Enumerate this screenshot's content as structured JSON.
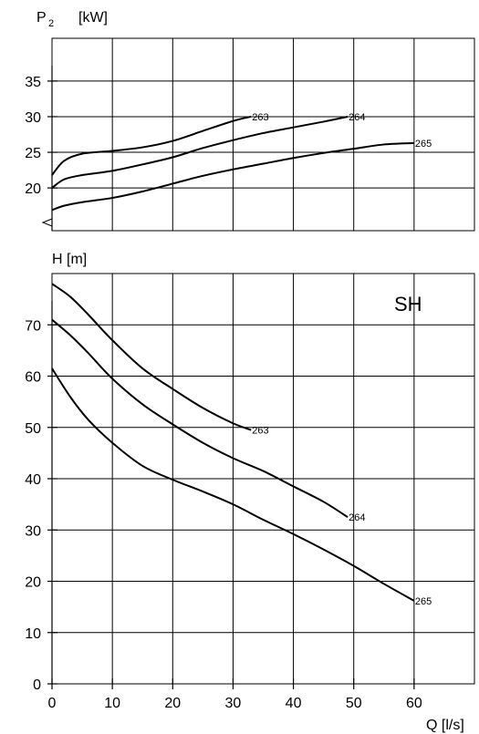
{
  "chart_data": [
    {
      "type": "line",
      "ylabel": "P",
      "ylabel_sub": "2",
      "ylabel_unit": "[kW]",
      "xlim": [
        0,
        70
      ],
      "ylim": [
        14,
        41
      ],
      "x_ticks": [
        0,
        10,
        20,
        30,
        40,
        50,
        60
      ],
      "y_ticks": [
        20,
        25,
        30,
        35
      ],
      "y_tick_labels": [
        "20",
        "25",
        "30",
        "35"
      ],
      "grid": true,
      "series": [
        {
          "name": "263",
          "x": [
            0,
            2,
            5,
            10,
            15,
            20,
            25,
            30,
            33
          ],
          "y": [
            21.8,
            23.8,
            24.8,
            25.2,
            25.7,
            26.6,
            28.0,
            29.4,
            30.0
          ]
        },
        {
          "name": "264",
          "x": [
            0,
            2,
            5,
            10,
            15,
            20,
            25,
            30,
            35,
            40,
            45,
            49
          ],
          "y": [
            20.0,
            21.2,
            21.8,
            22.4,
            23.3,
            24.3,
            25.6,
            26.7,
            27.7,
            28.5,
            29.3,
            30.0
          ]
        },
        {
          "name": "265",
          "x": [
            0,
            2,
            5,
            10,
            15,
            20,
            25,
            30,
            35,
            40,
            45,
            50,
            55,
            60
          ],
          "y": [
            16.9,
            17.5,
            18.0,
            18.6,
            19.5,
            20.6,
            21.7,
            22.6,
            23.4,
            24.2,
            24.9,
            25.5,
            26.1,
            26.3
          ]
        }
      ]
    },
    {
      "type": "line",
      "ylabel": "H [m]",
      "xlabel": "Q [l/s]",
      "annotation": "SH",
      "xlim": [
        0,
        70
      ],
      "ylim": [
        0,
        80
      ],
      "x_ticks": [
        0,
        10,
        20,
        30,
        40,
        50,
        60
      ],
      "x_tick_labels": [
        "0",
        "10",
        "20",
        "30",
        "40",
        "50",
        "60"
      ],
      "y_ticks": [
        0,
        10,
        20,
        30,
        40,
        50,
        60,
        70
      ],
      "y_tick_labels": [
        "0",
        "10",
        "20",
        "30",
        "40",
        "50",
        "60",
        "70"
      ],
      "grid": true,
      "series": [
        {
          "name": "263",
          "x": [
            0,
            3,
            6,
            10,
            15,
            20,
            25,
            30,
            33
          ],
          "y": [
            78.0,
            75.5,
            72.0,
            67.0,
            61.5,
            57.5,
            53.8,
            50.8,
            49.5
          ]
        },
        {
          "name": "264",
          "x": [
            0,
            3,
            6,
            10,
            15,
            20,
            25,
            30,
            35,
            40,
            45,
            49
          ],
          "y": [
            71.0,
            68.0,
            64.5,
            59.5,
            54.5,
            50.6,
            47.0,
            44.0,
            41.5,
            38.5,
            35.5,
            32.5
          ]
        },
        {
          "name": "265",
          "x": [
            0,
            3,
            6,
            10,
            15,
            20,
            25,
            30,
            35,
            40,
            45,
            50,
            55,
            60
          ],
          "y": [
            61.5,
            56.0,
            51.5,
            47.0,
            42.5,
            39.8,
            37.5,
            35.0,
            32.0,
            29.2,
            26.2,
            23.0,
            19.5,
            16.2
          ]
        }
      ]
    }
  ]
}
